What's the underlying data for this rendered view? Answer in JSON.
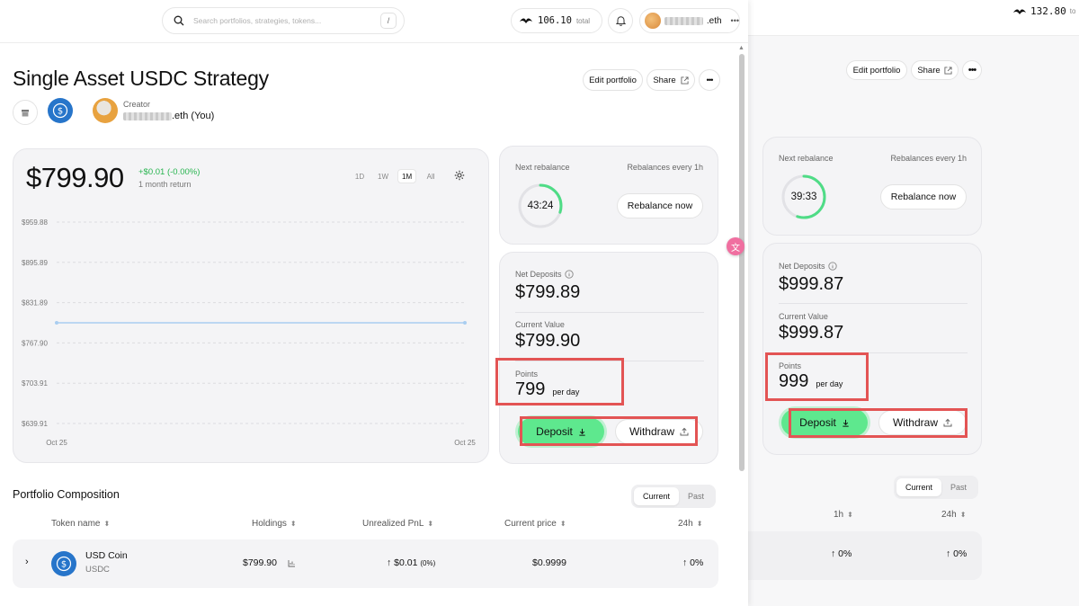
{
  "background_window": {
    "balance": "132.80",
    "balance_suffix": "to",
    "edit_label": "Edit portfolio",
    "share_label": "Share",
    "more_label": "•••",
    "next_rebalance_label": "Next rebalance",
    "rebalance_freq": "Rebalances every 1h",
    "countdown": "39:33",
    "rebalance_btn": "Rebalance now",
    "net_deposits_label": "Net Deposits",
    "net_deposits": "$999.87",
    "current_value_label": "Current Value",
    "current_value": "$999.87",
    "points_label": "Points",
    "points": "999",
    "per_day": "per day",
    "deposit": "Deposit",
    "withdraw": "Withdraw",
    "toggle": [
      "Current",
      "Past"
    ],
    "col_1h": "1h",
    "col_24h": "24h",
    "val_1h": "0%",
    "val_24h": "0%",
    "countdown_progress": 0.55
  },
  "main": {
    "search_placeholder": "Search portfolios, strategies, tokens...",
    "search_shortcut": "/",
    "balance": "106.10",
    "balance_suffix": "total",
    "account": ".eth",
    "more": "•••",
    "title": "Single Asset USDC Strategy",
    "edit_label": "Edit portfolio",
    "share_label": "Share",
    "more_label": "•••",
    "creator_label": "Creator",
    "creator_name": ".eth (You)",
    "chart_price": "$799.90",
    "chart_change": "+$0.01 (-0.00%)",
    "chart_return_label": "1 month return",
    "ranges": [
      "1D",
      "1W",
      "1M",
      "All"
    ],
    "active_range": "1M",
    "next_rebalance_label": "Next rebalance",
    "rebalance_freq": "Rebalances every 1h",
    "countdown": "43:24",
    "countdown_progress": 0.3,
    "rebalance_btn": "Rebalance now",
    "net_deposits_label": "Net Deposits",
    "net_deposits": "$799.89",
    "current_value_label": "Current Value",
    "current_value": "$799.90",
    "points_label": "Points",
    "points": "799",
    "per_day": "per day",
    "deposit": "Deposit",
    "withdraw": "Withdraw",
    "composition_title": "Portfolio Composition",
    "toggle": [
      "Current",
      "Past"
    ],
    "columns": [
      "Token name",
      "Holdings",
      "Unrealized PnL",
      "Current price",
      "24h"
    ],
    "row": {
      "name": "USD Coin",
      "symbol": "USDC",
      "holdings": "$799.90",
      "pnl": "$0.01",
      "pnl_pct": "(0%)",
      "price": "$0.9999",
      "change_24h": "0%"
    }
  },
  "chart_data": {
    "type": "line",
    "title": "",
    "xlabel": "",
    "ylabel": "",
    "x_tick_labels": [
      "Oct 25",
      "Oct 25"
    ],
    "y_ticks": [
      "$959.88",
      "$895.89",
      "$831.89",
      "$767.90",
      "$703.91",
      "$639.91"
    ],
    "ylim": [
      639.91,
      959.88
    ],
    "series": [
      {
        "x": [
          0,
          1
        ],
        "values": [
          799.9,
          799.9
        ]
      }
    ],
    "grid": true,
    "line_color": "#a9cdf0"
  }
}
